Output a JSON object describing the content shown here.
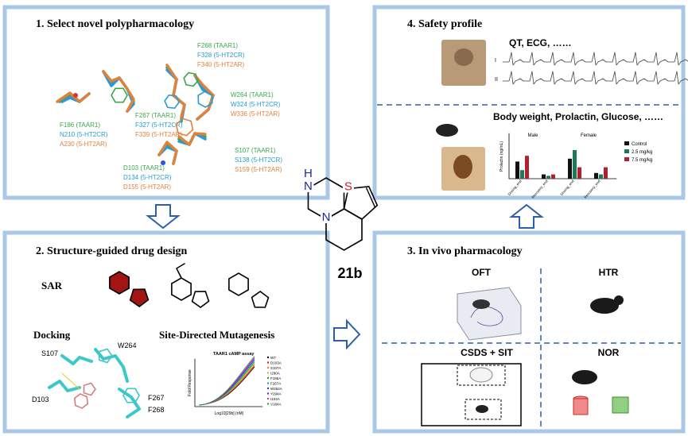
{
  "panels": {
    "p1": {
      "title": "1. Select novel polypharmacology",
      "residues": [
        [
          "F268 (TAAR1)",
          "F328 (5-HT2CR)",
          "F340 (5-HT2AR)"
        ],
        [
          "W264 (TAAR1)",
          "W324 (5-HT2CR)",
          "W336 (5-HT2AR)"
        ],
        [
          "F267 (TAAR1)",
          "F327 (5-HT2CR)",
          "F339 (5-HT2AR)"
        ],
        [
          "F186 (TAAR1)",
          "N210 (5-HT2CR)",
          "A230 (5-HT2AR)"
        ],
        [
          "S107 (TAAR1)",
          "S138 (5-HT2CR)",
          "S159 (5-HT2AR)"
        ],
        [
          "D103 (TAAR1)",
          "D134 (5-HT2CR)",
          "D155 (5-HT2AR)"
        ]
      ]
    },
    "p2": {
      "title": "2. Structure-guided drug design",
      "sar": "SAR",
      "docking": "Docking",
      "mutagenesis": "Site-Directed Mutagenesis",
      "docking_labels": [
        "S107",
        "W264",
        "D103",
        "F267",
        "F268"
      ],
      "assay": {
        "title": "TAAR1 cAMP assay",
        "y_label": "Fold Response",
        "x_label": "Log10[29b] (nM)",
        "legend": [
          "WT",
          "D103A",
          "S107A",
          "I290A",
          "F186A",
          "F267A",
          "W264A",
          "Y294A",
          "I104A",
          "V184A"
        ]
      }
    },
    "p3": {
      "title": "3. In vivo pharmacology",
      "tests": [
        "OFT",
        "HTR",
        "CSDS + SIT",
        "NOR"
      ]
    },
    "p4": {
      "title": "4. Safety profile",
      "cardio": "QT, ECG, ……",
      "metabolic": "Body weight, Prolactin, Glucose, ……",
      "ecg_leads": [
        "I",
        "II"
      ],
      "chart": {
        "y_label": "Prolactin (ng/mL)",
        "groups": [
          "Male",
          "Female"
        ],
        "x_labels": [
          "Dosing_end",
          "Recovery_end",
          "Dosing_end",
          "Recovery_end"
        ],
        "legend": [
          "Control",
          "2.5 mg/kg",
          "7.5 mg/kg"
        ]
      }
    }
  },
  "molecule": {
    "name": "21b",
    "atoms": [
      "H",
      "N",
      "N",
      "S"
    ]
  }
}
